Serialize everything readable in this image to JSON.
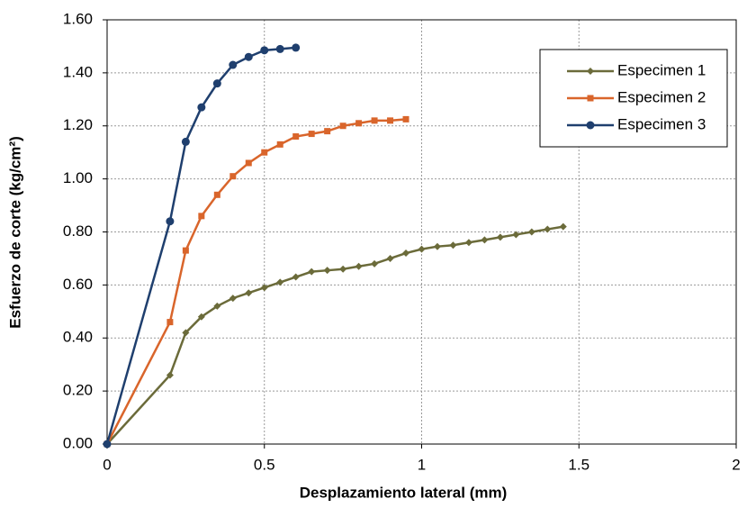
{
  "chart_data": {
    "type": "line",
    "x_label": "Desplazamiento lateral (mm)",
    "y_label": "Esfuerzo de corte (kg/cm²)",
    "xlim": [
      0,
      2
    ],
    "xticks": [
      0,
      0.5,
      1,
      1.5,
      2
    ],
    "ylim": [
      0,
      1.6
    ],
    "yticks": [
      {
        "value": 0,
        "label": "0.00"
      },
      {
        "value": 0.2,
        "label": "0.20"
      },
      {
        "value": 0.4,
        "label": "0.40"
      },
      {
        "value": 0.6,
        "label": "0.60"
      },
      {
        "value": 0.8,
        "label": "0.80"
      },
      {
        "value": 1.0,
        "label": "1.00"
      },
      {
        "value": 1.2,
        "label": "1.20"
      },
      {
        "value": 1.4,
        "label": "1.40"
      },
      {
        "value": 1.6,
        "label": "1.60"
      }
    ],
    "grid": true,
    "legend": "top-right",
    "series": [
      {
        "name": "Especimen 1",
        "color": "#6b6b3a",
        "marker": "diamond",
        "x": [
          0,
          0.2,
          0.25,
          0.3,
          0.35,
          0.4,
          0.45,
          0.5,
          0.55,
          0.6,
          0.65,
          0.7,
          0.75,
          0.8,
          0.85,
          0.9,
          0.95,
          1.0,
          1.05,
          1.1,
          1.15,
          1.2,
          1.25,
          1.3,
          1.35,
          1.4,
          1.45
        ],
        "values": [
          0,
          0.26,
          0.42,
          0.48,
          0.52,
          0.55,
          0.57,
          0.59,
          0.61,
          0.63,
          0.65,
          0.655,
          0.66,
          0.67,
          0.68,
          0.7,
          0.72,
          0.735,
          0.745,
          0.75,
          0.76,
          0.77,
          0.78,
          0.79,
          0.8,
          0.81,
          0.82
        ]
      },
      {
        "name": "Especimen 2",
        "color": "#d9652b",
        "marker": "square",
        "x": [
          0,
          0.2,
          0.25,
          0.3,
          0.35,
          0.4,
          0.45,
          0.5,
          0.55,
          0.6,
          0.65,
          0.7,
          0.75,
          0.8,
          0.85,
          0.9,
          0.95
        ],
        "values": [
          0,
          0.46,
          0.73,
          0.86,
          0.94,
          1.01,
          1.06,
          1.1,
          1.13,
          1.16,
          1.17,
          1.18,
          1.2,
          1.21,
          1.22,
          1.22,
          1.225
        ]
      },
      {
        "name": "Especimen 3",
        "color": "#1f3f6e",
        "marker": "circle",
        "x": [
          0,
          0.2,
          0.25,
          0.3,
          0.35,
          0.4,
          0.45,
          0.5,
          0.55,
          0.6
        ],
        "values": [
          0,
          0.84,
          1.14,
          1.27,
          1.36,
          1.43,
          1.46,
          1.485,
          1.49,
          1.495
        ]
      }
    ]
  }
}
